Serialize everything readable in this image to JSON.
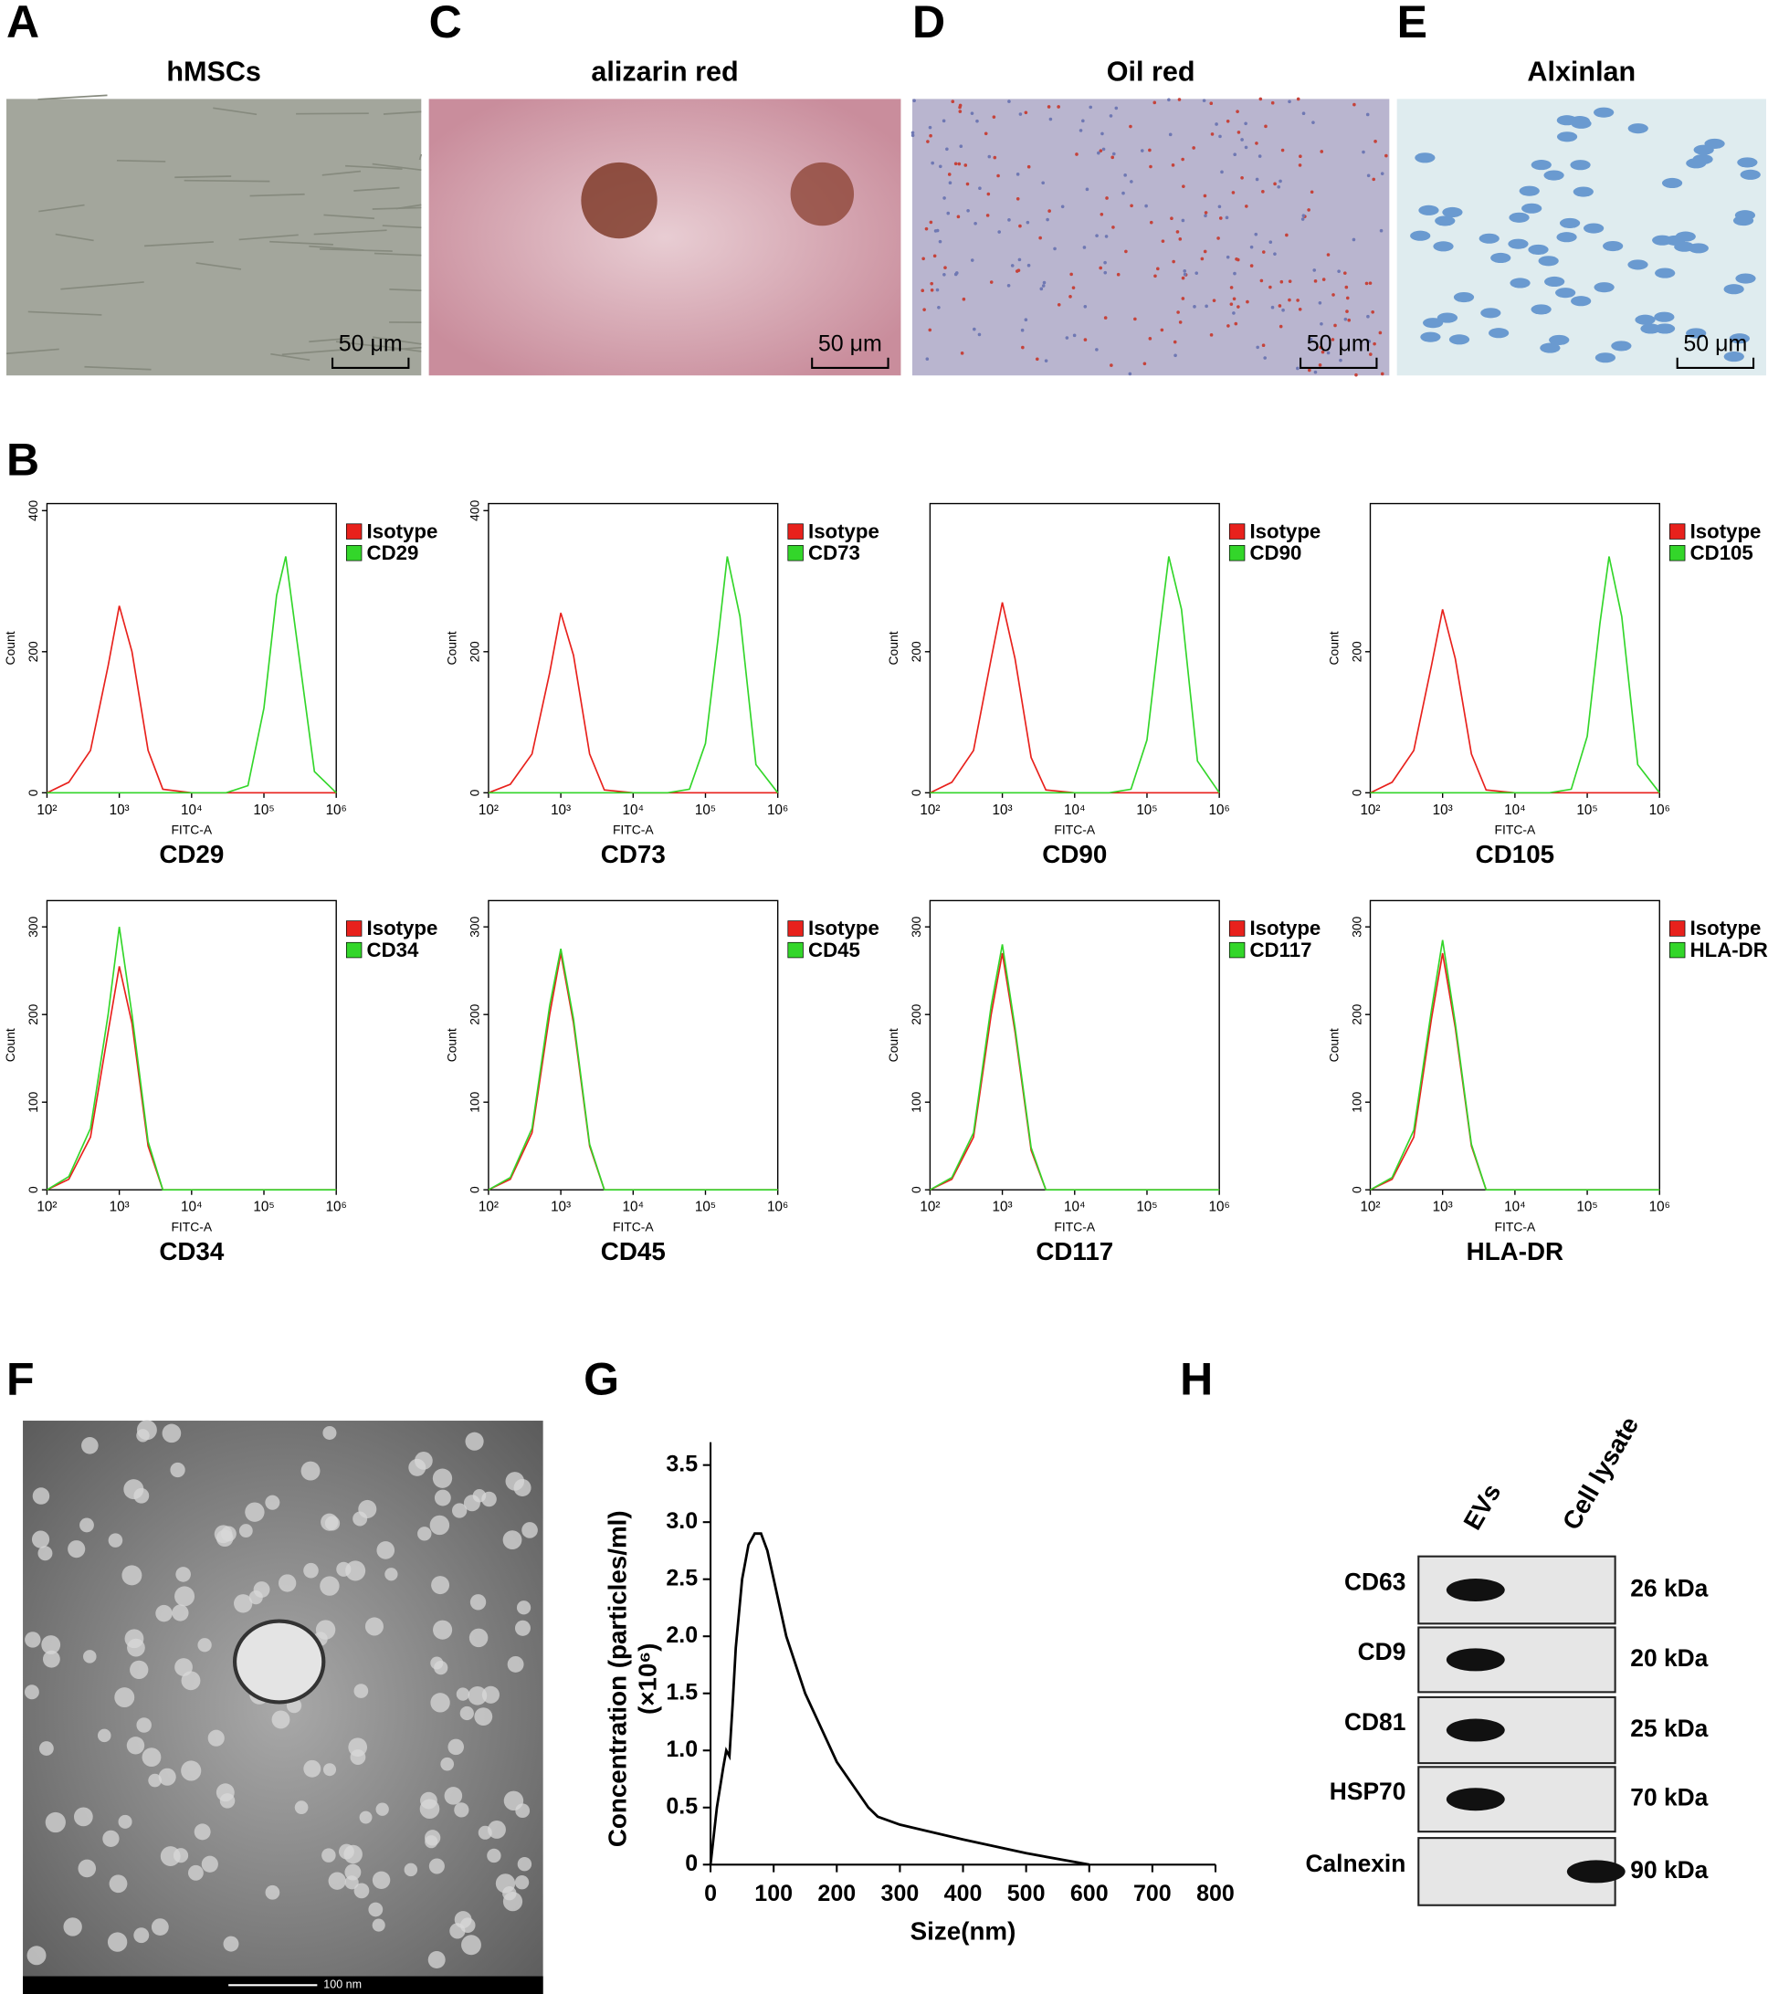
{
  "micrographs": [
    {
      "letter": "A",
      "title": "hMSCs",
      "scale_bar": "50 μm"
    },
    {
      "letter": "C",
      "title": "alizarin red",
      "scale_bar": "50 μm"
    },
    {
      "letter": "D",
      "title": "Oil red",
      "scale_bar": "50 μm"
    },
    {
      "letter": "E",
      "title": "Alxinlan",
      "scale_bar": "50 μm"
    }
  ],
  "flow_letter": "B",
  "tem": {
    "letter": "F",
    "scale_bar": "100 nm"
  },
  "nta_letter": "G",
  "western_blot": {
    "letter": "H",
    "lanes": [
      "EVs",
      "Cell lysate"
    ],
    "rows": [
      {
        "protein": "CD63",
        "size": "26 kDa"
      },
      {
        "protein": "CD9",
        "size": "20 kDa"
      },
      {
        "protein": "CD81",
        "size": "25 kDa"
      },
      {
        "protein": "HSP70",
        "size": "70 kDa"
      },
      {
        "protein": "Calnexin",
        "size": "90 kDa"
      }
    ]
  },
  "chart_data": [
    {
      "type": "line",
      "title": "CD29",
      "xlabel": "FITC-A",
      "ylabel": "Count",
      "xscale": "log",
      "xlim": [
        100,
        1000000
      ],
      "xticks": [
        {
          "value": 100,
          "label": "10²"
        },
        {
          "value": 1000,
          "label": "10³"
        },
        {
          "value": 10000,
          "label": "10⁴"
        },
        {
          "value": 100000,
          "label": "10⁵"
        },
        {
          "value": 1000000,
          "label": "10⁶"
        }
      ],
      "ylim": [
        0,
        410
      ],
      "yticks": [
        0,
        200,
        400
      ],
      "x": [
        100,
        200,
        400,
        700,
        1000,
        1500,
        2500,
        4000,
        10000,
        30000,
        60000,
        100000,
        150000,
        200000,
        300000,
        500000,
        1000000
      ],
      "series": [
        {
          "name": "Isotype",
          "color": "#e8211c",
          "values": [
            0,
            15,
            60,
            180,
            265,
            200,
            60,
            5,
            0,
            0,
            0,
            0,
            0,
            0,
            0,
            0,
            0
          ]
        },
        {
          "name": "CD29",
          "color": "#33d62a",
          "values": [
            0,
            0,
            0,
            0,
            0,
            0,
            0,
            0,
            0,
            0,
            10,
            120,
            280,
            335,
            200,
            30,
            0
          ]
        }
      ]
    },
    {
      "type": "line",
      "title": "CD73",
      "xlabel": "FITC-A",
      "ylabel": "Count",
      "xscale": "log",
      "xlim": [
        100,
        1000000
      ],
      "xticks": [
        {
          "value": 100,
          "label": "10²"
        },
        {
          "value": 1000,
          "label": "10³"
        },
        {
          "value": 10000,
          "label": "10⁴"
        },
        {
          "value": 100000,
          "label": "10⁵"
        },
        {
          "value": 1000000,
          "label": "10⁶"
        }
      ],
      "ylim": [
        0,
        410
      ],
      "yticks": [
        0,
        200,
        400
      ],
      "x": [
        100,
        200,
        400,
        700,
        1000,
        1500,
        2500,
        4000,
        10000,
        30000,
        60000,
        100000,
        150000,
        200000,
        300000,
        500000,
        1000000
      ],
      "series": [
        {
          "name": "Isotype",
          "color": "#e8211c",
          "values": [
            0,
            12,
            55,
            170,
            255,
            195,
            55,
            4,
            0,
            0,
            0,
            0,
            0,
            0,
            0,
            0,
            0
          ]
        },
        {
          "name": "CD73",
          "color": "#33d62a",
          "values": [
            0,
            0,
            0,
            0,
            0,
            0,
            0,
            0,
            0,
            0,
            5,
            70,
            220,
            335,
            250,
            40,
            0
          ]
        }
      ]
    },
    {
      "type": "line",
      "title": "CD90",
      "xlabel": "FITC-A",
      "ylabel": "Count",
      "xscale": "log",
      "xlim": [
        100,
        1000000
      ],
      "xticks": [
        {
          "value": 100,
          "label": "10²"
        },
        {
          "value": 1000,
          "label": "10³"
        },
        {
          "value": 10000,
          "label": "10⁴"
        },
        {
          "value": 100000,
          "label": "10⁵"
        },
        {
          "value": 1000000,
          "label": "10⁶"
        }
      ],
      "ylim": [
        0,
        410
      ],
      "yticks": [
        0,
        200
      ],
      "x": [
        100,
        200,
        400,
        700,
        1000,
        1500,
        2500,
        4000,
        10000,
        30000,
        60000,
        100000,
        150000,
        200000,
        300000,
        500000,
        1000000
      ],
      "series": [
        {
          "name": "Isotype",
          "color": "#e8211c",
          "values": [
            0,
            15,
            60,
            190,
            270,
            190,
            50,
            4,
            0,
            0,
            0,
            0,
            0,
            0,
            0,
            0,
            0
          ]
        },
        {
          "name": "CD90",
          "color": "#33d62a",
          "values": [
            0,
            0,
            0,
            0,
            0,
            0,
            0,
            0,
            0,
            0,
            5,
            75,
            230,
            335,
            260,
            45,
            0
          ]
        }
      ]
    },
    {
      "type": "line",
      "title": "CD105",
      "xlabel": "FITC-A",
      "ylabel": "Count",
      "xscale": "log",
      "xlim": [
        100,
        1000000
      ],
      "xticks": [
        {
          "value": 100,
          "label": "10²"
        },
        {
          "value": 1000,
          "label": "10³"
        },
        {
          "value": 10000,
          "label": "10⁴"
        },
        {
          "value": 100000,
          "label": "10⁵"
        },
        {
          "value": 1000000,
          "label": "10⁶"
        }
      ],
      "ylim": [
        0,
        410
      ],
      "yticks": [
        0,
        200
      ],
      "x": [
        100,
        200,
        400,
        700,
        1000,
        1500,
        2500,
        4000,
        10000,
        30000,
        60000,
        100000,
        150000,
        200000,
        300000,
        500000,
        1000000
      ],
      "series": [
        {
          "name": "Isotype",
          "color": "#e8211c",
          "values": [
            0,
            15,
            60,
            180,
            260,
            190,
            55,
            4,
            0,
            0,
            0,
            0,
            0,
            0,
            0,
            0,
            0
          ]
        },
        {
          "name": "CD105",
          "color": "#33d62a",
          "values": [
            0,
            0,
            0,
            0,
            0,
            0,
            0,
            0,
            0,
            0,
            5,
            80,
            240,
            335,
            250,
            40,
            0
          ]
        }
      ]
    },
    {
      "type": "line",
      "title": "CD34",
      "xlabel": "FITC-A",
      "ylabel": "Count",
      "xscale": "log",
      "xlim": [
        100,
        1000000
      ],
      "xticks": [
        {
          "value": 100,
          "label": "10²"
        },
        {
          "value": 1000,
          "label": "10³"
        },
        {
          "value": 10000,
          "label": "10⁴"
        },
        {
          "value": 100000,
          "label": "10⁵"
        },
        {
          "value": 1000000,
          "label": "10⁶"
        }
      ],
      "ylim": [
        0,
        330
      ],
      "yticks": [
        0,
        100,
        200,
        300
      ],
      "x": [
        100,
        200,
        400,
        700,
        1000,
        1500,
        2500,
        4000,
        10000,
        100000,
        1000000
      ],
      "series": [
        {
          "name": "Isotype",
          "color": "#e8211c",
          "values": [
            0,
            12,
            60,
            180,
            255,
            190,
            50,
            0,
            0,
            0,
            0
          ]
        },
        {
          "name": "CD34",
          "color": "#33d62a",
          "values": [
            0,
            15,
            70,
            200,
            300,
            200,
            55,
            0,
            0,
            0,
            0
          ]
        }
      ]
    },
    {
      "type": "line",
      "title": "CD45",
      "xlabel": "FITC-A",
      "ylabel": "Count",
      "xscale": "log",
      "xlim": [
        100,
        1000000
      ],
      "xticks": [
        {
          "value": 100,
          "label": "10²"
        },
        {
          "value": 1000,
          "label": "10³"
        },
        {
          "value": 10000,
          "label": "10⁴"
        },
        {
          "value": 100000,
          "label": "10⁵"
        },
        {
          "value": 1000000,
          "label": "10⁶"
        }
      ],
      "ylim": [
        0,
        330
      ],
      "yticks": [
        0,
        100,
        200,
        300
      ],
      "x": [
        100,
        200,
        400,
        700,
        1000,
        1500,
        2500,
        4000,
        10000,
        100000,
        1000000
      ],
      "series": [
        {
          "name": "Isotype",
          "color": "#e8211c",
          "values": [
            0,
            12,
            65,
            200,
            270,
            190,
            50,
            0,
            0,
            0,
            0
          ]
        },
        {
          "name": "CD45",
          "color": "#33d62a",
          "values": [
            0,
            14,
            70,
            210,
            275,
            195,
            52,
            0,
            0,
            0,
            0
          ]
        }
      ]
    },
    {
      "type": "line",
      "title": "CD117",
      "xlabel": "FITC-A",
      "ylabel": "Count",
      "xscale": "log",
      "xlim": [
        100,
        1000000
      ],
      "xticks": [
        {
          "value": 100,
          "label": "10²"
        },
        {
          "value": 1000,
          "label": "10³"
        },
        {
          "value": 10000,
          "label": "10⁴"
        },
        {
          "value": 100000,
          "label": "10⁵"
        },
        {
          "value": 1000000,
          "label": "10⁶"
        }
      ],
      "ylim": [
        0,
        330
      ],
      "yticks": [
        0,
        100,
        200,
        300
      ],
      "x": [
        100,
        200,
        400,
        700,
        1000,
        1500,
        2500,
        4000,
        10000,
        100000,
        1000000
      ],
      "series": [
        {
          "name": "Isotype",
          "color": "#e8211c",
          "values": [
            0,
            12,
            60,
            200,
            270,
            180,
            45,
            0,
            0,
            0,
            0
          ]
        },
        {
          "name": "CD117",
          "color": "#33d62a",
          "values": [
            0,
            14,
            65,
            210,
            280,
            185,
            48,
            0,
            0,
            0,
            0
          ]
        }
      ]
    },
    {
      "type": "line",
      "title": "HLA-DR",
      "xlabel": "FITC-A",
      "ylabel": "Count",
      "xscale": "log",
      "xlim": [
        100,
        1000000
      ],
      "xticks": [
        {
          "value": 100,
          "label": "10²"
        },
        {
          "value": 1000,
          "label": "10³"
        },
        {
          "value": 10000,
          "label": "10⁴"
        },
        {
          "value": 100000,
          "label": "10⁵"
        },
        {
          "value": 1000000,
          "label": "10⁶"
        }
      ],
      "ylim": [
        0,
        330
      ],
      "yticks": [
        0,
        100,
        200,
        300
      ],
      "x": [
        100,
        200,
        400,
        700,
        1000,
        1500,
        2500,
        4000,
        10000,
        100000,
        1000000
      ],
      "series": [
        {
          "name": "Isotype",
          "color": "#e8211c",
          "values": [
            0,
            12,
            60,
            195,
            270,
            185,
            50,
            0,
            0,
            0,
            0
          ]
        },
        {
          "name": "HLA-DR",
          "color": "#33d62a",
          "values": [
            0,
            14,
            68,
            205,
            285,
            190,
            52,
            0,
            0,
            0,
            0
          ]
        }
      ]
    },
    {
      "type": "line",
      "xlabel": "Size(nm)",
      "ylabel": [
        "Concentration (particles/ml)",
        "(×10⁶)"
      ],
      "xlim": [
        0,
        800
      ],
      "xticks": [
        0,
        100,
        200,
        300,
        400,
        500,
        600,
        700,
        800
      ],
      "ylim": [
        0,
        3.7
      ],
      "yticks": [
        0,
        0.5,
        {
          "value": 1,
          "label": "1.0"
        },
        1.5,
        {
          "value": 2,
          "label": "2.0"
        },
        2.5,
        {
          "value": 3,
          "label": "3.0"
        },
        3.5
      ],
      "x": [
        0,
        10,
        20,
        25,
        30,
        35,
        40,
        50,
        60,
        70,
        80,
        90,
        100,
        120,
        150,
        200,
        250,
        265,
        300,
        400,
        500,
        600
      ],
      "series": [
        {
          "color": "#000000",
          "values": [
            0,
            0.5,
            0.85,
            1.0,
            0.95,
            1.4,
            1.9,
            2.5,
            2.8,
            2.9,
            2.9,
            2.75,
            2.5,
            2.0,
            1.5,
            0.9,
            0.5,
            0.42,
            0.35,
            0.22,
            0.1,
            0
          ]
        }
      ]
    }
  ]
}
